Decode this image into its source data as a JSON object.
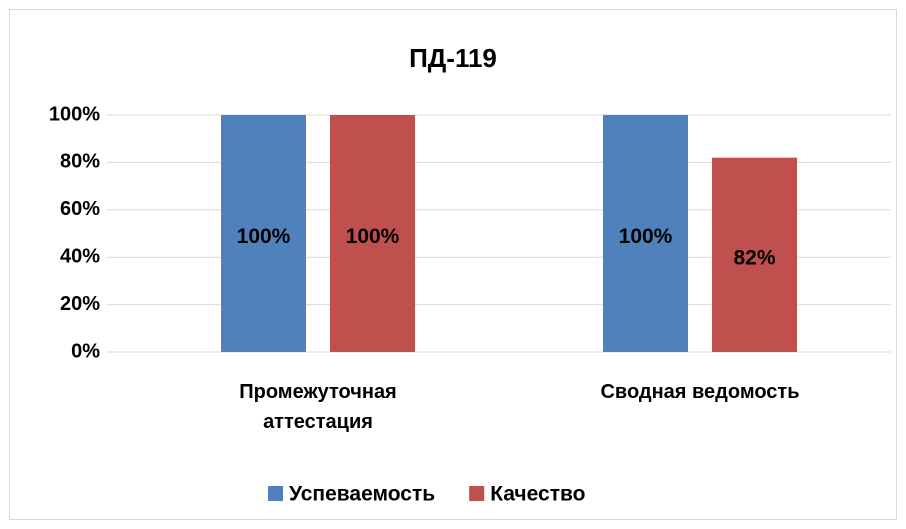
{
  "chart_data": {
    "type": "bar",
    "title": "ПД-119",
    "categories": [
      "Промежуточная аттестация",
      "Сводная ведомость"
    ],
    "series": [
      {
        "name": "Успеваемость",
        "color": "#4f81bd",
        "values": [
          100,
          100
        ],
        "value_labels": [
          "100%",
          "100%"
        ]
      },
      {
        "name": "Качество",
        "color": "#c0504d",
        "values": [
          100,
          82
        ],
        "value_labels": [
          "100%",
          "82%"
        ]
      }
    ],
    "ylim": [
      0,
      100
    ],
    "yticks": [
      {
        "value": 0,
        "label": "0%"
      },
      {
        "value": 20,
        "label": "20%"
      },
      {
        "value": 40,
        "label": "40%"
      },
      {
        "value": 60,
        "label": "60%"
      },
      {
        "value": 80,
        "label": "80%"
      },
      {
        "value": 100,
        "label": "100%"
      }
    ],
    "grid": true,
    "legend": "bottom"
  }
}
